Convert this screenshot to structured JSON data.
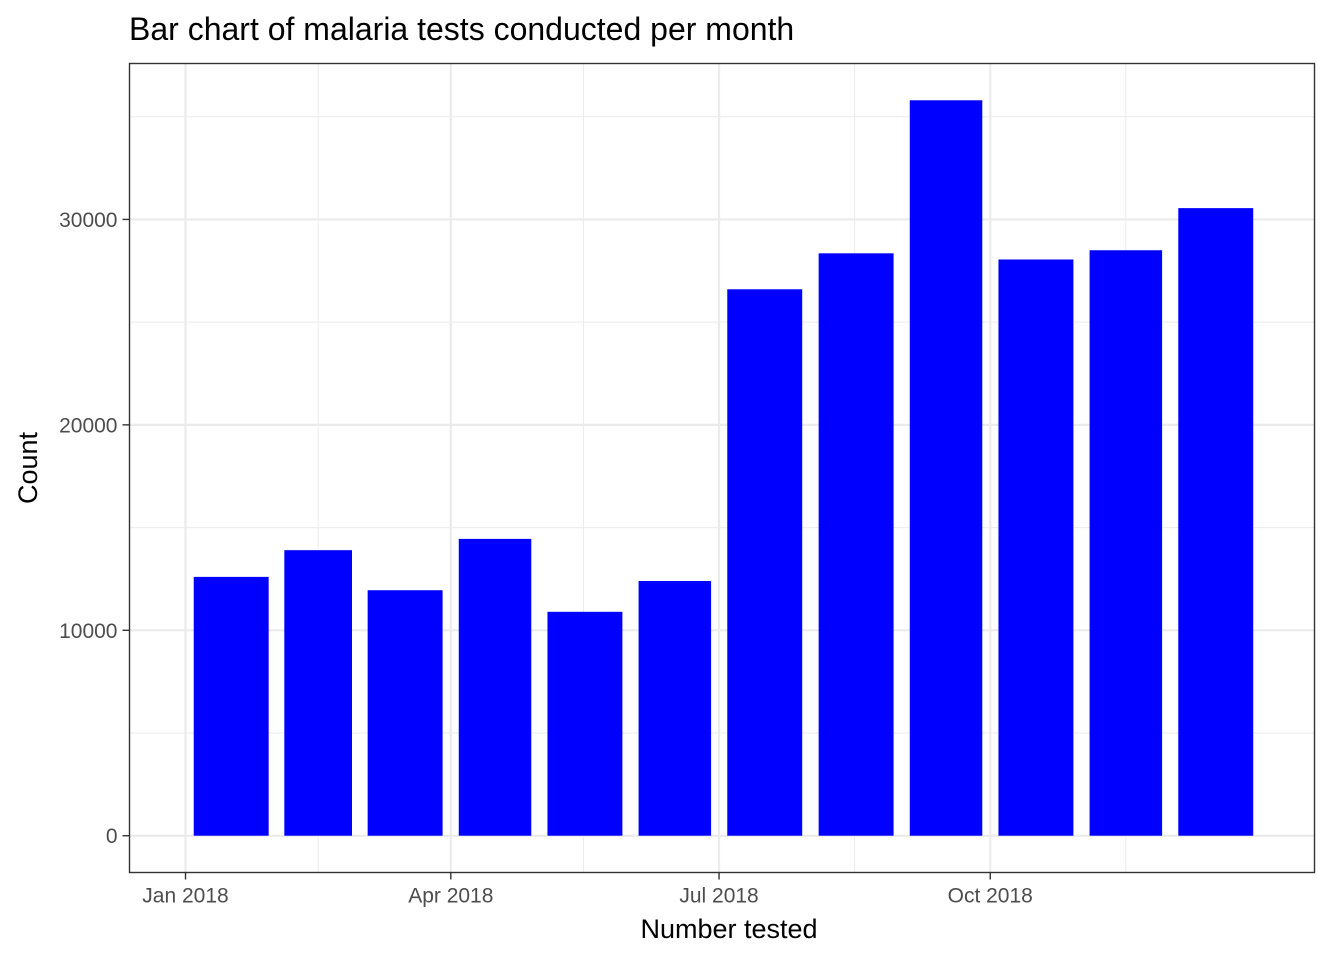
{
  "chart_data": {
    "type": "bar",
    "title": "Bar chart of malaria tests conducted per month",
    "xlabel": "Number tested",
    "ylabel": "Count",
    "categories": [
      "2018-01",
      "2018-02",
      "2018-03",
      "2018-04",
      "2018-05",
      "2018-06",
      "2018-07",
      "2018-08",
      "2018-09",
      "2018-10",
      "2018-11",
      "2018-12"
    ],
    "values": [
      12600,
      13900,
      11950,
      14450,
      10900,
      12400,
      26600,
      28350,
      35800,
      28050,
      28500,
      30550
    ],
    "x_ticks": [
      {
        "label": "Jan 2018",
        "date": "2018-01-01"
      },
      {
        "label": "Apr 2018",
        "date": "2018-04-01"
      },
      {
        "label": "Jul 2018",
        "date": "2018-07-01"
      },
      {
        "label": "Oct 2018",
        "date": "2018-10-01"
      }
    ],
    "x_minor_gridlines": [
      "2018-02-15",
      "2018-05-16",
      "2018-08-16",
      "2018-11-16"
    ],
    "xlim": [
      "2017-12-13",
      "2019-01-19"
    ],
    "y_ticks": [
      0,
      10000,
      20000,
      30000
    ],
    "y_minor_gridlines": [
      5000,
      15000,
      25000,
      35000
    ],
    "ylim": [
      -1790,
      37590
    ],
    "grid": true,
    "bar_color": "#0000ff",
    "legend": "none"
  }
}
